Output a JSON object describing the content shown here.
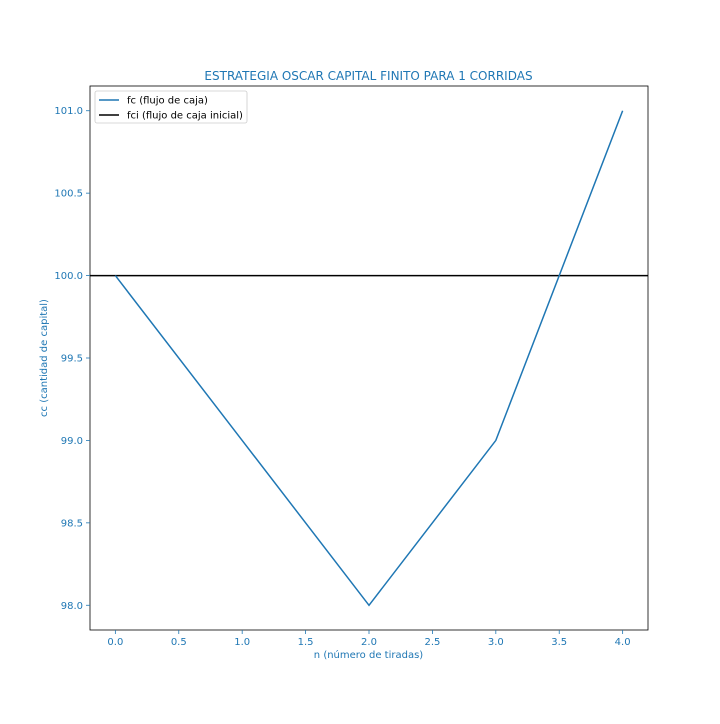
{
  "chart_data": {
    "type": "line",
    "title": "ESTRATEGIA OSCAR CAPITAL FINITO PARA 1 CORRIDAS",
    "xlabel": "n (número de tiradas)",
    "ylabel": "cc (cantidad de capital)",
    "xlim": [
      -0.2,
      4.2
    ],
    "ylim": [
      97.85,
      101.15
    ],
    "xticks": [
      "0.0",
      "0.5",
      "1.0",
      "1.5",
      "2.0",
      "2.5",
      "3.0",
      "3.5",
      "4.0"
    ],
    "yticks": [
      "98.0",
      "98.5",
      "99.0",
      "99.5",
      "100.0",
      "100.5",
      "101.0"
    ],
    "grid": false,
    "legend_position": "upper-left",
    "series": [
      {
        "name": "fc (flujo de caja)",
        "color": "#1f77b4",
        "x": [
          0,
          1,
          2,
          3,
          4
        ],
        "y": [
          100,
          99,
          98,
          99,
          101
        ]
      }
    ],
    "hlines": [
      {
        "name": "fci (flujo de caja inicial)",
        "y": 100,
        "color": "#000000"
      }
    ],
    "text_color": "#1f77b4"
  }
}
